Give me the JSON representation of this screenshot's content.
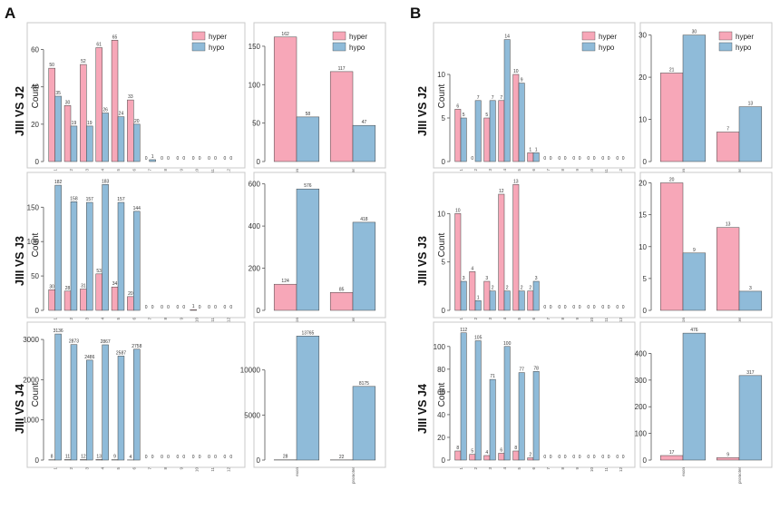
{
  "colors": {
    "hyper_light": "#f7a7b8",
    "hypo": "#8fbbd9",
    "hyper_dark": "#c0242a"
  },
  "panel_labels": [
    "A",
    "B"
  ],
  "rows": [
    "JIII VS J2",
    "JIII VS J3",
    "JIII VS J4"
  ],
  "ylabel": "Count",
  "legend": [
    "hyper",
    "hypo"
  ],
  "region_categories": [
    "exon",
    "promoter"
  ],
  "chart_data": [
    {
      "id": "A1",
      "type": "bar",
      "panel": "A",
      "row": "JIII VS J2",
      "ylabel": "Count",
      "ylim": [
        0,
        70
      ],
      "yticks": [
        0,
        20,
        40,
        60
      ],
      "categories": [
        "1",
        "2",
        "3",
        "4",
        "5",
        "6",
        "7",
        "8",
        "9",
        "10",
        "11",
        "12"
      ],
      "series": [
        {
          "name": "hyper",
          "values": [
            50,
            30,
            52,
            61,
            65,
            33,
            0,
            0,
            0,
            0,
            0,
            0
          ]
        },
        {
          "name": "hypo",
          "values": [
            35,
            19,
            19,
            26,
            24,
            20,
            1,
            0,
            0,
            0,
            0,
            0
          ]
        }
      ],
      "legend": "top-right",
      "data_labels": true
    },
    {
      "id": "A2",
      "type": "bar",
      "panel": "A",
      "row": "JIII VS J2",
      "ylim": [
        0,
        170
      ],
      "yticks": [
        0,
        50,
        100,
        150
      ],
      "categories": [
        "exon",
        "promoter"
      ],
      "series": [
        {
          "name": "hyper",
          "values": [
            162,
            117
          ]
        },
        {
          "name": "hypo",
          "values": [
            58,
            47
          ]
        }
      ],
      "legend": "top-right",
      "data_labels": true
    },
    {
      "id": "A3",
      "type": "bar",
      "panel": "A",
      "row": "JIII VS J3",
      "ylabel": "Count",
      "ylim": [
        0,
        190
      ],
      "yticks": [
        0,
        50,
        100,
        150
      ],
      "categories": [
        "1",
        "2",
        "3",
        "4",
        "5",
        "6",
        "7",
        "8",
        "9",
        "10",
        "11",
        "12"
      ],
      "series": [
        {
          "name": "hyper",
          "values": [
            30,
            28,
            31,
            53,
            34,
            20,
            0,
            0,
            0,
            1,
            0,
            0
          ]
        },
        {
          "name": "hypo",
          "values": [
            182,
            158,
            157,
            183,
            157,
            144,
            0,
            0,
            0,
            0,
            0,
            0
          ]
        }
      ],
      "data_labels": true
    },
    {
      "id": "A4",
      "type": "bar",
      "panel": "A",
      "row": "JIII VS J3",
      "ylim": [
        0,
        620
      ],
      "yticks": [
        0,
        200,
        400,
        600
      ],
      "categories": [
        "exon",
        "promoter"
      ],
      "series": [
        {
          "name": "hyper",
          "values": [
            124,
            85
          ]
        },
        {
          "name": "hypo",
          "values": [
            576,
            418
          ]
        }
      ],
      "data_labels": true
    },
    {
      "id": "A5",
      "type": "bar",
      "panel": "A",
      "row": "JIII VS J4",
      "ylabel": "Count",
      "ylim": [
        0,
        3250
      ],
      "yticks": [
        0,
        1000,
        2000,
        3000
      ],
      "categories": [
        "1",
        "2",
        "3",
        "4",
        "5",
        "6",
        "7",
        "8",
        "9",
        "10",
        "11",
        "12"
      ],
      "series": [
        {
          "name": "hyper",
          "values": [
            8,
            11,
            12,
            13,
            9,
            4,
            0,
            0,
            0,
            0,
            0,
            0
          ]
        },
        {
          "name": "hypo",
          "values": [
            3136,
            2873,
            2486,
            2867,
            2587,
            2758,
            0,
            0,
            0,
            0,
            0,
            0
          ]
        }
      ],
      "data_labels": true
    },
    {
      "id": "A6",
      "type": "bar",
      "panel": "A",
      "row": "JIII VS J4",
      "ylim": [
        0,
        14500
      ],
      "yticks": [
        0,
        5000,
        10000
      ],
      "categories": [
        "exon",
        "promoter"
      ],
      "series": [
        {
          "name": "hyper",
          "values": [
            28,
            22
          ]
        },
        {
          "name": "hypo",
          "values": [
            13765,
            8175
          ]
        }
      ],
      "data_labels": true
    },
    {
      "id": "B1",
      "type": "bar",
      "panel": "B",
      "row": "JIII VS J2",
      "ylabel": "Count",
      "ylim": [
        0,
        15
      ],
      "yticks": [
        0,
        5,
        10
      ],
      "categories": [
        "1",
        "2",
        "3",
        "4",
        "5",
        "6",
        "7",
        "8",
        "9",
        "10",
        "11",
        "12"
      ],
      "series": [
        {
          "name": "hyper",
          "values": [
            6,
            0,
            5,
            7,
            10,
            1,
            0,
            0,
            0,
            0,
            0,
            0
          ]
        },
        {
          "name": "hypo",
          "values": [
            5,
            7,
            7,
            14,
            9,
            1,
            0,
            0,
            0,
            0,
            0,
            0
          ]
        }
      ],
      "legend": "top-right",
      "data_labels": true
    },
    {
      "id": "B2",
      "type": "bar",
      "panel": "B",
      "row": "JIII VS J2",
      "ylim": [
        0,
        31
      ],
      "yticks": [
        0,
        10,
        20,
        30
      ],
      "categories": [
        "exon",
        "promoter"
      ],
      "series": [
        {
          "name": "hyper",
          "values": [
            21,
            7
          ]
        },
        {
          "name": "hypo",
          "values": [
            30,
            13
          ]
        }
      ],
      "legend": "top-right",
      "data_labels": true
    },
    {
      "id": "B3",
      "type": "bar",
      "panel": "B",
      "row": "JIII VS J3",
      "ylabel": "Count",
      "ylim": [
        0,
        13.5
      ],
      "yticks": [
        0,
        5,
        10
      ],
      "categories": [
        "1",
        "2",
        "3",
        "4",
        "5",
        "6",
        "7",
        "8",
        "9",
        "10",
        "11",
        "12"
      ],
      "series": [
        {
          "name": "hyper",
          "values": [
            10,
            4,
            3,
            12,
            13,
            2,
            0,
            0,
            0,
            0,
            0,
            0
          ]
        },
        {
          "name": "hypo",
          "values": [
            3,
            1,
            2,
            2,
            2,
            3,
            0,
            0,
            0,
            0,
            0,
            0
          ]
        }
      ],
      "data_labels": true
    },
    {
      "id": "B4",
      "type": "bar",
      "panel": "B",
      "row": "JIII VS J3",
      "ylim": [
        0,
        20.5
      ],
      "yticks": [
        0,
        5,
        10,
        15,
        20
      ],
      "categories": [
        "exon",
        "promoter"
      ],
      "series": [
        {
          "name": "hyper",
          "values": [
            20,
            13
          ]
        },
        {
          "name": "hypo",
          "values": [
            9,
            3
          ]
        }
      ],
      "data_labels": true
    },
    {
      "id": "B5",
      "type": "bar",
      "panel": "B",
      "row": "JIII VS J4",
      "ylabel": "Count",
      "ylim": [
        0,
        115
      ],
      "yticks": [
        0,
        20,
        40,
        60,
        80,
        100
      ],
      "categories": [
        "1",
        "2",
        "3",
        "4",
        "5",
        "6",
        "7",
        "8",
        "9",
        "10",
        "11",
        "12"
      ],
      "series": [
        {
          "name": "hyper",
          "values": [
            8,
            5,
            4,
            6,
            8,
            2,
            0,
            0,
            0,
            0,
            0,
            0
          ]
        },
        {
          "name": "hypo",
          "values": [
            112,
            105,
            71,
            100,
            77,
            78,
            0,
            0,
            0,
            0,
            0,
            0
          ]
        }
      ],
      "data_labels": true
    },
    {
      "id": "B6",
      "type": "bar",
      "panel": "B",
      "row": "JIII VS J4",
      "ylim": [
        0,
        490
      ],
      "yticks": [
        0,
        100,
        200,
        300,
        400
      ],
      "categories": [
        "exon",
        "promoter"
      ],
      "series": [
        {
          "name": "hyper",
          "values": [
            17,
            9
          ]
        },
        {
          "name": "hypo",
          "values": [
            476,
            317
          ]
        }
      ],
      "data_labels": true
    }
  ]
}
